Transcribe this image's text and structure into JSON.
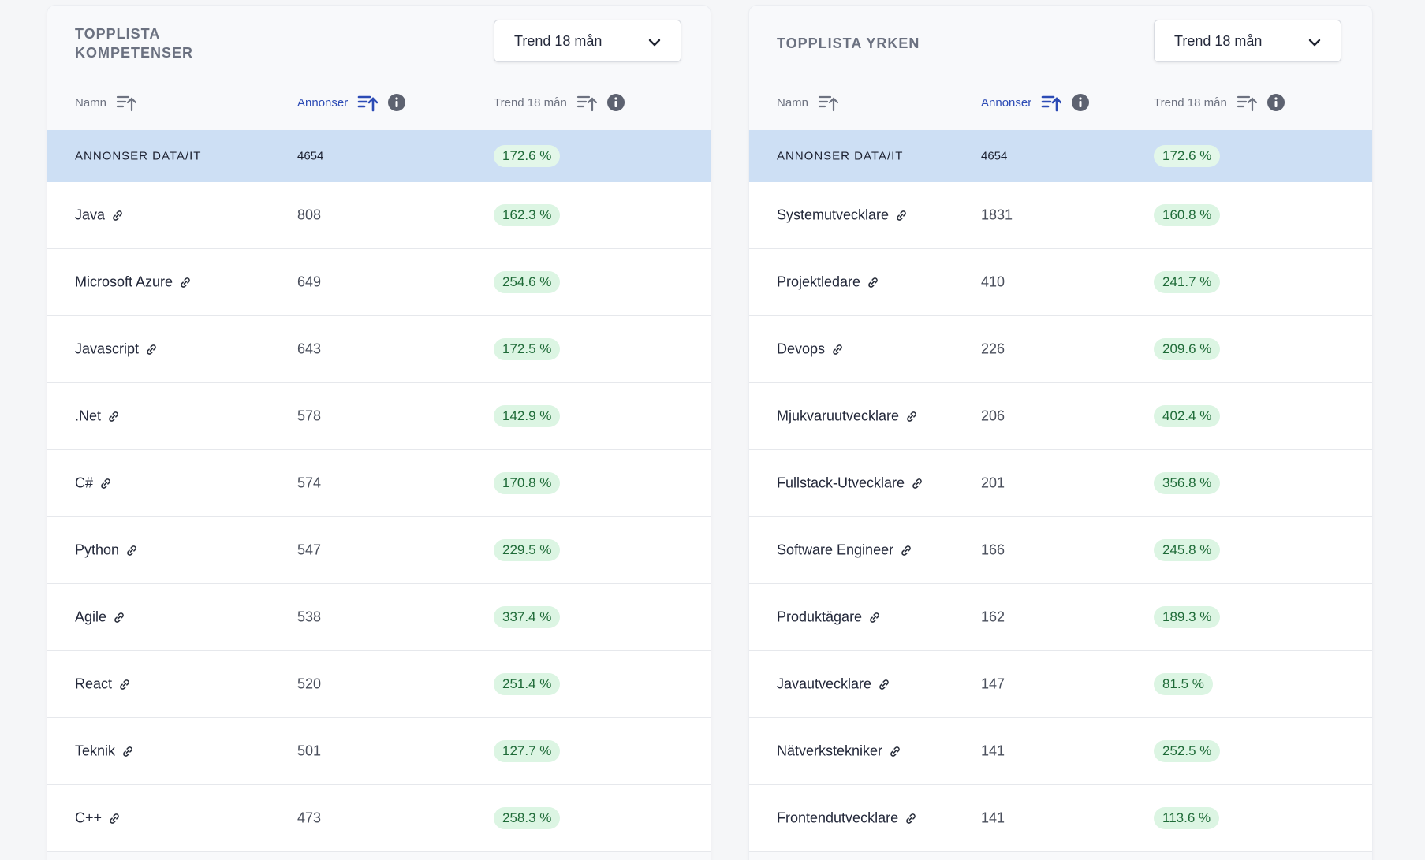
{
  "left": {
    "title": "TOPPLISTA KOMPETENSER",
    "dropdown": {
      "selected": "Trend 18 mån"
    },
    "columns": {
      "name": "Namn",
      "count": "Annonser",
      "trend": "Trend 18 mån"
    },
    "total": {
      "name": "ANNONSER DATA/IT",
      "count": "4654",
      "trend": "172.6 %"
    },
    "rows": [
      {
        "name": "Java",
        "count": "808",
        "trend": "162.3 %"
      },
      {
        "name": "Microsoft Azure",
        "count": "649",
        "trend": "254.6 %"
      },
      {
        "name": "Javascript",
        "count": "643",
        "trend": "172.5 %"
      },
      {
        "name": ".Net",
        "count": "578",
        "trend": "142.9 %"
      },
      {
        "name": "C#",
        "count": "574",
        "trend": "170.8 %"
      },
      {
        "name": "Python",
        "count": "547",
        "trend": "229.5 %"
      },
      {
        "name": "Agile",
        "count": "538",
        "trend": "337.4 %"
      },
      {
        "name": "React",
        "count": "520",
        "trend": "251.4 %"
      },
      {
        "name": "Teknik",
        "count": "501",
        "trend": "127.7 %"
      },
      {
        "name": "C++",
        "count": "473",
        "trend": "258.3 %"
      }
    ]
  },
  "right": {
    "title": "TOPPLISTA YRKEN",
    "dropdown": {
      "selected": "Trend 18 mån"
    },
    "columns": {
      "name": "Namn",
      "count": "Annonser",
      "trend": "Trend 18 mån"
    },
    "total": {
      "name": "ANNONSER DATA/IT",
      "count": "4654",
      "trend": "172.6 %"
    },
    "rows": [
      {
        "name": "Systemutvecklare",
        "count": "1831",
        "trend": "160.8 %"
      },
      {
        "name": "Projektledare",
        "count": "410",
        "trend": "241.7 %"
      },
      {
        "name": "Devops",
        "count": "226",
        "trend": "209.6 %"
      },
      {
        "name": "Mjukvaruutvecklare",
        "count": "206",
        "trend": "402.4 %"
      },
      {
        "name": "Fullstack-Utvecklare",
        "count": "201",
        "trend": "356.8 %"
      },
      {
        "name": "Software Engineer",
        "count": "166",
        "trend": "245.8 %"
      },
      {
        "name": "Produktägare",
        "count": "162",
        "trend": "189.3 %"
      },
      {
        "name": "Javautvecklare",
        "count": "147",
        "trend": "81.5 %"
      },
      {
        "name": "Nätverkstekniker",
        "count": "141",
        "trend": "252.5 %"
      },
      {
        "name": "Frontendutvecklare",
        "count": "141",
        "trend": "113.6 %"
      }
    ]
  },
  "icons": {
    "sort": "sort-ascending-icon",
    "info": "info-icon",
    "link": "link-icon",
    "chevron": "chevron-down-icon"
  },
  "colors": {
    "active_sort": "#2c4bb5",
    "total_row_bg": "#cddff4",
    "trend_badge_bg": "#dcf5e3",
    "trend_badge_text": "#1f6b38"
  }
}
